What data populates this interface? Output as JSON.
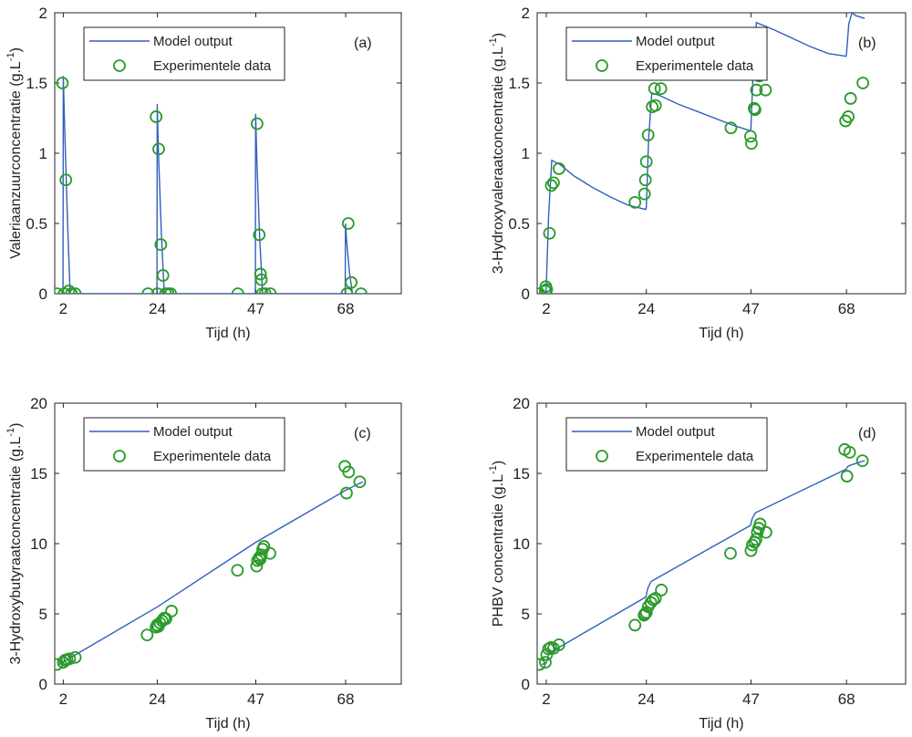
{
  "colors": {
    "model": "#2f5fbf",
    "data": "#2a9a2a",
    "axis": "#222222"
  },
  "chart_data": [
    {
      "type": "line+scatter",
      "panel_label": "(a)",
      "ylabel": "Valeriaanzuurconcentratie  (g.L",
      "ylabel_unit": "(g.L-1)",
      "xlabel": "Tijd  (h)",
      "xlim": [
        0,
        81
      ],
      "ylim": [
        0,
        2
      ],
      "xticks": [
        2,
        24,
        47,
        68
      ],
      "yticks": [
        0,
        0.5,
        1,
        1.5,
        2
      ],
      "yticklabels": [
        "0",
        "0.5",
        "1",
        "1.5",
        "2"
      ],
      "legend": {
        "line_label": "Model output",
        "marker_label": "Experimentele data",
        "placement": "top"
      },
      "series": [
        {
          "name": "Model output",
          "kind": "line",
          "x": [
            0,
            1.95,
            2,
            2.3,
            3.0,
            3.6,
            23.9,
            23.95,
            24.2,
            24.9,
            25.6,
            46.9,
            46.95,
            47.2,
            47.9,
            48.6,
            67.9,
            67.95,
            68.2,
            68.9,
            69.6,
            73
          ],
          "y": [
            0,
            0,
            1.55,
            1.2,
            0.5,
            0,
            0,
            1.35,
            1.05,
            0.45,
            0,
            0,
            1.28,
            1.0,
            0.4,
            0,
            0,
            0.5,
            0.38,
            0.15,
            0,
            0
          ]
        },
        {
          "name": "Experimentele data",
          "kind": "scatter",
          "x": [
            0.5,
            1.8,
            2.2,
            2.6,
            3.3,
            3.9,
            4.8,
            21.8,
            23.7,
            24.0,
            24.3,
            24.8,
            25.3,
            25.9,
            26.5,
            27.1,
            42.8,
            47.3,
            47.8,
            48.1,
            48.3,
            48.5,
            49.2,
            50.4,
            68.3,
            68.6,
            69.3,
            71.6
          ],
          "y": [
            0,
            1.5,
            0,
            0.81,
            0.02,
            0,
            0,
            0,
            1.26,
            0,
            1.03,
            0.35,
            0.13,
            0,
            0,
            0,
            0,
            1.21,
            0.42,
            0.14,
            0.1,
            0,
            0,
            0,
            0,
            0.5,
            0.08,
            0
          ]
        }
      ]
    },
    {
      "type": "line+scatter",
      "panel_label": "(b)",
      "ylabel": "3-Hydroxyvaleraatconcentratie (g.L",
      "ylabel_unit": "(g.L-1)",
      "xlabel": "Tijd  (h)",
      "xlim": [
        0,
        81
      ],
      "ylim": [
        0,
        2
      ],
      "xticks": [
        2,
        24,
        47,
        68
      ],
      "yticks": [
        0,
        0.5,
        1,
        1.5,
        2
      ],
      "yticklabels": [
        "0",
        "0.5",
        "1",
        "1.5",
        "2"
      ],
      "legend": {
        "line_label": "Model output",
        "marker_label": "Experimentele data",
        "placement": "top"
      },
      "series": [
        {
          "name": "Model output",
          "kind": "line",
          "x": [
            0,
            1.95,
            2.0,
            2.5,
            3.2,
            5,
            8,
            12,
            16,
            20,
            23.9,
            24.0,
            24.5,
            25.2,
            27,
            31,
            35,
            39,
            43,
            46.9,
            47.0,
            47.5,
            48.2,
            52,
            56,
            60,
            64,
            67.9,
            68.0,
            68.5,
            69.2,
            70,
            72
          ],
          "y": [
            0,
            0,
            0.05,
            0.55,
            0.95,
            0.92,
            0.84,
            0.76,
            0.69,
            0.63,
            0.6,
            0.62,
            1.1,
            1.43,
            1.41,
            1.35,
            1.3,
            1.25,
            1.2,
            1.16,
            1.18,
            1.6,
            1.93,
            1.88,
            1.82,
            1.76,
            1.71,
            1.69,
            1.71,
            1.92,
            2.0,
            1.98,
            1.96
          ]
        },
        {
          "name": "Experimentele data",
          "kind": "scatter",
          "x": [
            0.5,
            1.8,
            1.9,
            2.1,
            2.7,
            3.1,
            3.6,
            4.8,
            21.5,
            23.6,
            23.8,
            24.0,
            24.4,
            25.3,
            25.8,
            26.0,
            27.2,
            42.6,
            46.9,
            47.1,
            47.7,
            47.9,
            48.2,
            48.5,
            48.8,
            50.2,
            67.8,
            68.4,
            68.9,
            71.6
          ],
          "y": [
            0,
            0.02,
            0.05,
            0.03,
            0.43,
            0.77,
            0.79,
            0.89,
            0.65,
            0.71,
            0.81,
            0.94,
            1.13,
            1.33,
            1.46,
            1.34,
            1.46,
            1.18,
            1.12,
            1.07,
            1.32,
            1.31,
            1.45,
            1.56,
            1.55,
            1.45,
            1.23,
            1.26,
            1.39,
            1.5
          ]
        }
      ]
    },
    {
      "type": "line+scatter",
      "panel_label": "(c)",
      "ylabel": "3-Hydroxybutyraatconcentratie (g.L",
      "ylabel_unit": "(g.L-1)",
      "xlabel": "Tijd  (h)",
      "xlim": [
        0,
        81
      ],
      "ylim": [
        0,
        20
      ],
      "xticks": [
        2,
        24,
        47,
        68
      ],
      "yticks": [
        0,
        5,
        10,
        15,
        20
      ],
      "yticklabels": [
        "0",
        "5",
        "10",
        "15",
        "20"
      ],
      "legend": {
        "line_label": "Model output",
        "marker_label": "Experimentele data",
        "placement": "top"
      },
      "series": [
        {
          "name": "Model output",
          "kind": "line",
          "x": [
            1,
            24,
            47,
            68,
            72
          ],
          "y": [
            1.4,
            5.5,
            10.1,
            13.8,
            14.4
          ]
        },
        {
          "name": "Experimentele data",
          "kind": "scatter",
          "x": [
            0.5,
            2.0,
            2.4,
            2.9,
            3.5,
            4.8,
            21.6,
            23.7,
            23.9,
            24.2,
            24.6,
            25.1,
            25.6,
            26.0,
            27.3,
            42.7,
            47.2,
            47.4,
            47.8,
            48.0,
            48.3,
            48.6,
            48.9,
            50.3,
            67.8,
            68.2,
            68.7,
            71.3
          ],
          "y": [
            1.4,
            1.55,
            1.7,
            1.75,
            1.8,
            1.9,
            3.5,
            4.05,
            4.2,
            4.1,
            4.35,
            4.5,
            4.7,
            4.65,
            5.2,
            8.1,
            8.4,
            8.8,
            9.0,
            8.9,
            9.2,
            9.6,
            9.8,
            9.3,
            15.5,
            13.6,
            15.1,
            14.4
          ]
        }
      ]
    },
    {
      "type": "line+scatter",
      "panel_label": "(d)",
      "ylabel": "PHBV concentratie  (g.L",
      "ylabel_unit": "(g.L-1)",
      "xlabel": "Tijd  (h)",
      "xlim": [
        0,
        81
      ],
      "ylim": [
        0,
        20
      ],
      "xticks": [
        2,
        24,
        47,
        68
      ],
      "yticks": [
        0,
        5,
        10,
        15,
        20
      ],
      "yticklabels": [
        "0",
        "5",
        "10",
        "15",
        "20"
      ],
      "legend": {
        "line_label": "Model output",
        "marker_label": "Experimentele data",
        "placement": "top"
      },
      "series": [
        {
          "name": "Model output",
          "kind": "line",
          "x": [
            1,
            2.0,
            2.6,
            23.9,
            24.3,
            25.0,
            46.9,
            47.3,
            48.0,
            67.9,
            68.3,
            69.0,
            72
          ],
          "y": [
            1.4,
            1.5,
            2.2,
            6.2,
            6.8,
            7.3,
            11.3,
            11.8,
            12.2,
            15.3,
            15.5,
            15.6,
            15.9
          ]
        },
        {
          "name": "Experimentele data",
          "kind": "scatter",
          "x": [
            0.5,
            1.8,
            2.1,
            2.5,
            3.0,
            3.6,
            4.8,
            21.5,
            23.5,
            23.7,
            24.0,
            24.4,
            25.0,
            25.5,
            26.0,
            27.3,
            42.5,
            47.0,
            47.3,
            47.8,
            48.1,
            48.4,
            48.7,
            49.0,
            50.3,
            67.6,
            68.1,
            68.7,
            71.5
          ],
          "y": [
            1.4,
            1.55,
            2.1,
            2.5,
            2.6,
            2.55,
            2.8,
            4.2,
            4.9,
            5.0,
            5.1,
            5.5,
            5.8,
            6.0,
            6.1,
            6.7,
            9.3,
            9.5,
            9.9,
            10.1,
            10.3,
            10.8,
            11.1,
            11.4,
            10.8,
            16.7,
            14.8,
            16.5,
            15.9
          ]
        }
      ]
    }
  ]
}
